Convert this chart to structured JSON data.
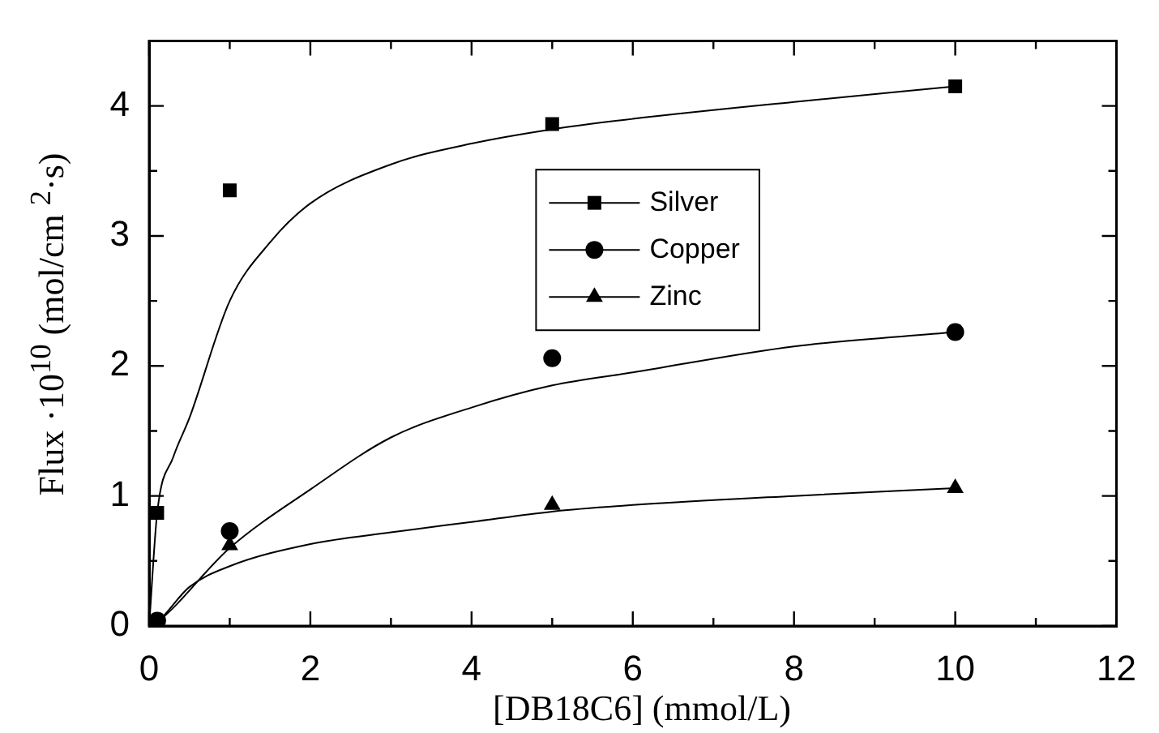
{
  "chart_data": {
    "type": "scatter",
    "xlabel": "[DB18C6] (mmol/L)",
    "ylabel": "Flux ·10$^{10}$ (mol/cm $^{2}$·s)",
    "xlim": [
      0,
      12
    ],
    "ylim": [
      0,
      4.5
    ],
    "xticks": [
      0,
      {
        "value": 1,
        "label": null
      },
      2,
      {
        "value": 3,
        "label": null
      },
      4,
      {
        "value": 5,
        "label": null
      },
      6,
      {
        "value": 7,
        "label": null
      },
      8,
      {
        "value": 9,
        "label": null
      },
      10,
      {
        "value": 11,
        "label": null
      },
      12
    ],
    "yticks": [
      0,
      {
        "value": 0.5,
        "label": null
      },
      1,
      {
        "value": 1.5,
        "label": null
      },
      2,
      {
        "value": 2.5,
        "label": null
      },
      3,
      {
        "value": 3.5,
        "label": null
      },
      4
    ],
    "grid": false,
    "legend": "right",
    "series": [
      {
        "name": "Silver",
        "color": "#000000",
        "marker": "square",
        "x": [
          0.1,
          1,
          5,
          10
        ],
        "values": [
          0.87,
          3.35,
          3.86,
          4.15
        ]
      },
      {
        "name": "Copper",
        "color": "#000000",
        "marker": "circle",
        "x": [
          0.1,
          1,
          5,
          10
        ],
        "values": [
          0.04,
          0.73,
          2.06,
          2.26
        ]
      },
      {
        "name": "Zinc",
        "color": "#000000",
        "marker": "triangle",
        "x": [
          1,
          5,
          10
        ],
        "values": [
          0.62,
          0.93,
          1.06
        ]
      },
      {
        "type": "line",
        "color": "#000000",
        "marker": "none",
        "x": [
          0,
          0.1,
          0.3,
          0.5,
          1,
          1.5,
          2,
          3,
          4,
          5,
          6,
          8,
          10
        ],
        "values": [
          0,
          0.87,
          1.3,
          1.6,
          2.5,
          2.95,
          3.25,
          3.55,
          3.71,
          3.82,
          3.9,
          4.03,
          4.15
        ]
      },
      {
        "type": "line",
        "color": "#000000",
        "marker": "none",
        "x": [
          0,
          0.1,
          1,
          2,
          3,
          4,
          5,
          6,
          8,
          10
        ],
        "values": [
          0,
          0.03,
          0.6,
          1.05,
          1.45,
          1.68,
          1.85,
          1.95,
          2.15,
          2.26
        ]
      },
      {
        "type": "line",
        "color": "#000000",
        "marker": "none",
        "x": [
          0,
          0.1,
          0.5,
          1,
          2,
          3,
          4,
          5,
          6,
          8,
          10
        ],
        "values": [
          0,
          0.03,
          0.3,
          0.46,
          0.63,
          0.72,
          0.8,
          0.88,
          0.93,
          1.0,
          1.06
        ]
      }
    ]
  }
}
